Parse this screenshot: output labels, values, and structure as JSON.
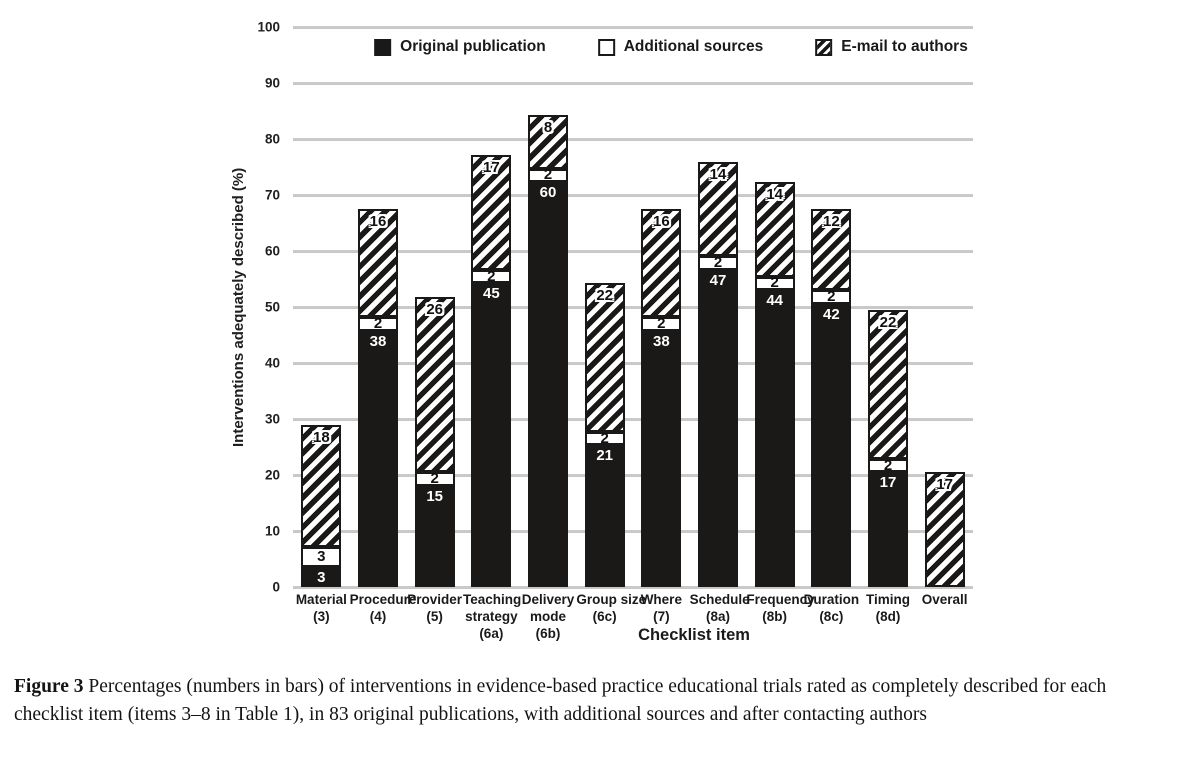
{
  "chart_data": {
    "type": "bar",
    "subtype": "stacked",
    "xlabel": "Checklist item",
    "ylabel": "Interventions adequately described (%)",
    "ylim": [
      0,
      100
    ],
    "yticks": [
      0,
      10,
      20,
      30,
      40,
      50,
      60,
      70,
      80,
      90,
      100
    ],
    "grid": "horizontal",
    "legend_position": "top-center",
    "denominator_total_trials": 83,
    "value_note": "segment heights are percentages of 83 trials; labels in bars show counts",
    "categories": [
      [
        "Material",
        "(3)"
      ],
      [
        "Procedure",
        "(4)"
      ],
      [
        "Provider",
        "(5)"
      ],
      [
        "Teaching",
        "strategy",
        "(6a)"
      ],
      [
        "Delivery",
        "mode",
        "(6b)"
      ],
      [
        "Group size",
        "(6c)"
      ],
      [
        "Where",
        "(7)"
      ],
      [
        "Schedule",
        "(8a)"
      ],
      [
        "Frequency",
        "(8b)"
      ],
      [
        "Duration",
        "(8c)"
      ],
      [
        "Timing",
        "(8d)"
      ],
      [
        "Overall"
      ]
    ],
    "series": [
      {
        "name": "Original publication",
        "style": "solid",
        "values": [
          3,
          38,
          15,
          45,
          60,
          21,
          38,
          47,
          44,
          42,
          17,
          0
        ]
      },
      {
        "name": "Additional sources",
        "style": "white",
        "values": [
          3,
          2,
          2,
          2,
          2,
          2,
          2,
          2,
          2,
          2,
          2,
          0
        ]
      },
      {
        "name": "E-mail to authors",
        "style": "hatched",
        "values": [
          18,
          16,
          26,
          17,
          8,
          22,
          16,
          14,
          14,
          12,
          22,
          17
        ]
      }
    ],
    "stack_totals_percent": [
      28.9,
      67.5,
      51.8,
      77.1,
      84.3,
      54.2,
      67.5,
      75.9,
      72.3,
      67.5,
      49.4,
      20.5
    ]
  },
  "caption": {
    "figure_label": "Figure 3",
    "text": "Percentages (numbers in bars) of interventions in evidence-based practice educational trials rated as completely described for each checklist item (items 3–8 in Table 1), in 83 original publications, with additional sources and after contacting authors"
  },
  "colors": {
    "bar_fill": "#1b1918",
    "gridline": "#c9c9c9",
    "text": "#1a1a1a"
  }
}
